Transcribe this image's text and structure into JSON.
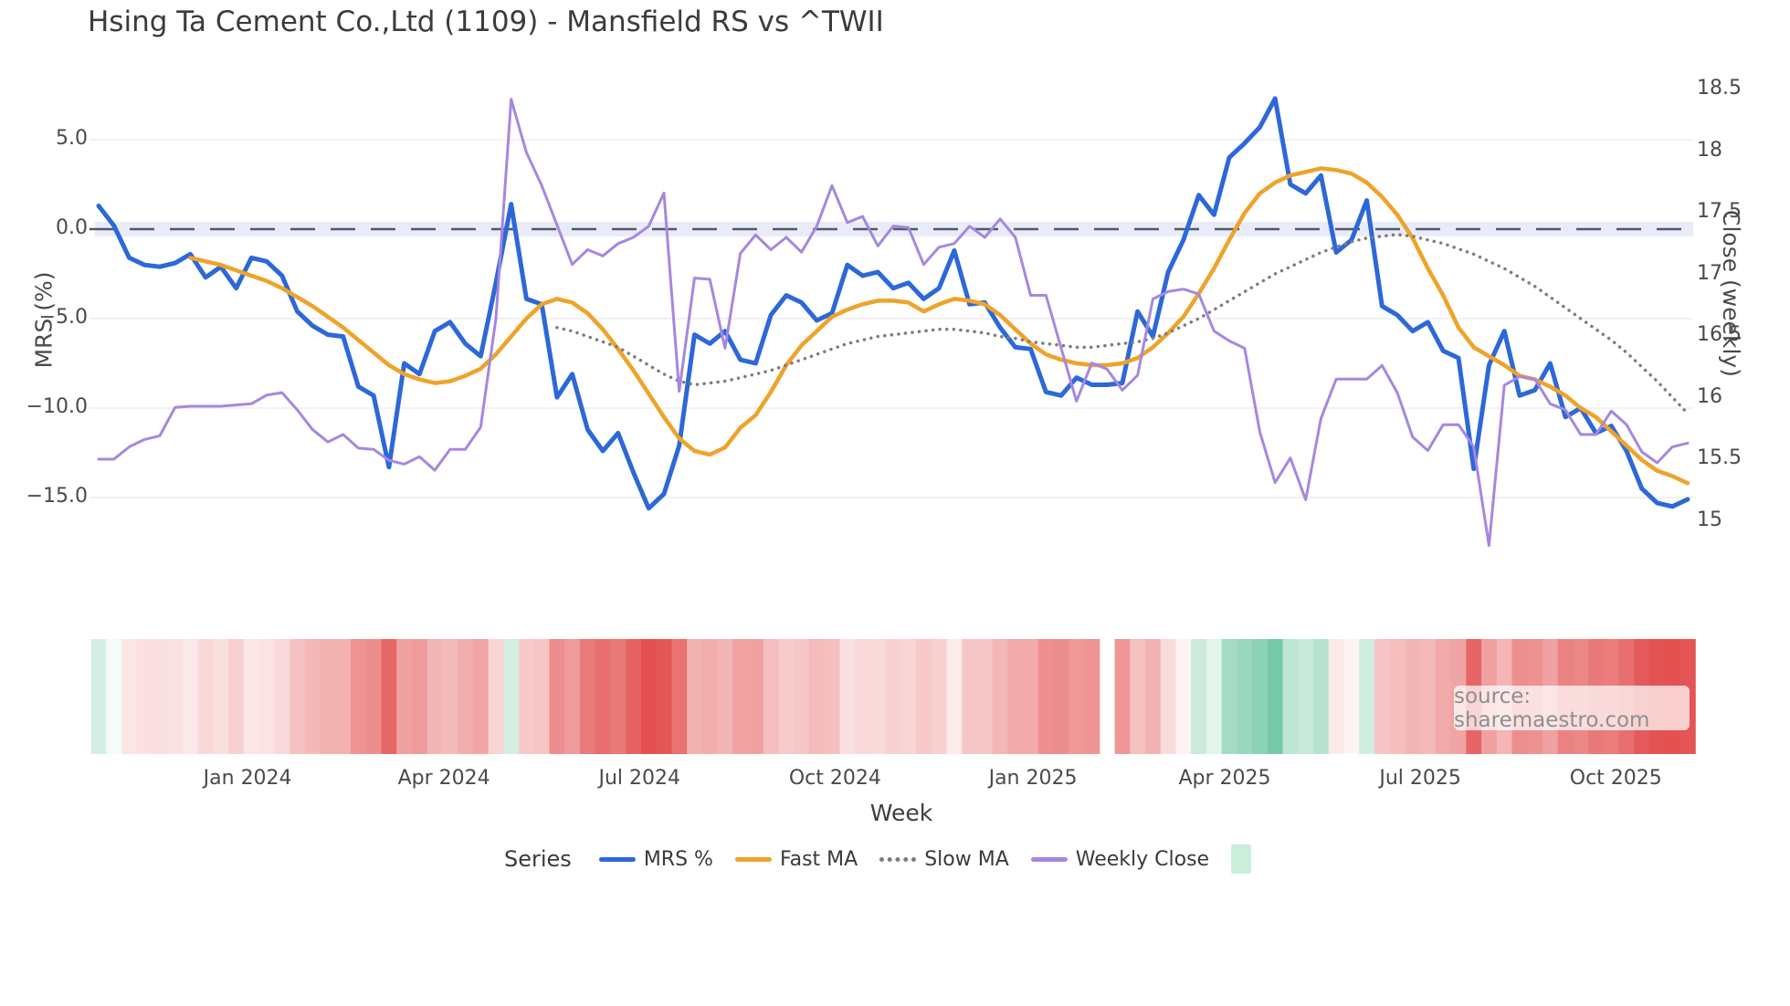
{
  "chart_data": {
    "type": "line",
    "title": "Hsing Ta Cement Co.,Ltd (1109) - Mansfield RS vs ^TWII",
    "xlabel": "Week",
    "ylabel_left": "MRS (%)",
    "ylabel_right": "Close (weekly)",
    "legend_title": "Series",
    "source_text": "source: sharemaestro.com",
    "grid": true,
    "zero_line_value": 0.0,
    "x_tick_labels": [
      "Jan 2024",
      "Apr 2024",
      "Jul 2024",
      "Oct 2024",
      "Jan 2025",
      "Apr 2025",
      "Jul 2025",
      "Oct 2025"
    ],
    "x_tick_weeks": [
      9.75,
      22.6,
      35.4,
      48.2,
      61.15,
      73.7,
      86.5,
      99.3
    ],
    "yleft_tick_labels": [
      "5.0",
      "0.0",
      "−5.0",
      "−10.0",
      "−15.0"
    ],
    "yleft_tick_values": [
      5.0,
      0.0,
      -5.0,
      -10.0,
      -15.0
    ],
    "yleft_range": [
      -17.5,
      9.8
    ],
    "yright_tick_labels": [
      "18.5",
      "18",
      "17.5",
      "17",
      "16.5",
      "16",
      "15.5",
      "15"
    ],
    "yright_tick_values": [
      18.5,
      18,
      17.5,
      17,
      16.5,
      16,
      15.5,
      15
    ],
    "yright_range": [
      14.6,
      18.8
    ],
    "weeks_count": 105,
    "colors": {
      "mrs": "#2d68d9",
      "fast_ma": "#eea32a",
      "slow_ma": "#7d7d7d",
      "weekly_close": "#a687e0",
      "heat_positive": "#12a368",
      "heat_negative": "#e34c4c",
      "heat_legend_swatch": "#c9efdc",
      "zero_band": "#e9ecf8",
      "zero_dash": "#4f5868",
      "gridline": "#eceef2"
    },
    "series": [
      {
        "name": "MRS %",
        "axis": "left",
        "style": "solid",
        "color": "#2d68d9",
        "width": 5,
        "values": [
          1.3,
          0.2,
          -1.6,
          -2.0,
          -2.1,
          -1.9,
          -1.4,
          -2.7,
          -2.1,
          -3.3,
          -1.6,
          -1.8,
          -2.6,
          -4.6,
          -5.4,
          -5.9,
          -6.0,
          -8.8,
          -9.3,
          -13.3,
          -7.5,
          -8.1,
          -5.7,
          -5.2,
          -6.4,
          -7.1,
          -3.0,
          1.4,
          -3.9,
          -4.2,
          -9.4,
          -8.1,
          -11.2,
          -12.4,
          -11.4,
          -13.6,
          -15.6,
          -14.8,
          -12.1,
          -5.9,
          -6.4,
          -5.7,
          -7.3,
          -7.5,
          -4.8,
          -3.7,
          -4.1,
          -5.1,
          -4.7,
          -2.0,
          -2.6,
          -2.4,
          -3.3,
          -3.0,
          -3.9,
          -3.3,
          -1.2,
          -4.2,
          -4.1,
          -5.5,
          -6.6,
          -6.7,
          -9.1,
          -9.3,
          -8.3,
          -8.7,
          -8.7,
          -8.6,
          -4.6,
          -6.0,
          -2.4,
          -0.6,
          1.9,
          0.8,
          4.0,
          4.8,
          5.7,
          7.3,
          2.5,
          2.0,
          3.0,
          -1.3,
          -0.6,
          1.6,
          -4.3,
          -4.8,
          -5.7,
          -5.2,
          -6.8,
          -7.2,
          -13.4,
          -7.6,
          -5.7,
          -9.3,
          -9.0,
          -7.5,
          -10.5,
          -10.0,
          -11.4,
          -11.0,
          -12.4,
          -14.5,
          -15.3,
          -15.5,
          -15.1
        ]
      },
      {
        "name": "Fast MA",
        "axis": "left",
        "style": "solid",
        "color": "#eea32a",
        "width": 4.5,
        "values": [
          null,
          null,
          null,
          null,
          null,
          null,
          -1.6,
          -1.8,
          -2.0,
          -2.3,
          -2.6,
          -2.9,
          -3.3,
          -3.8,
          -4.3,
          -4.9,
          -5.5,
          -6.2,
          -6.9,
          -7.6,
          -8.1,
          -8.4,
          -8.6,
          -8.5,
          -8.2,
          -7.8,
          -7.0,
          -6.0,
          -5.0,
          -4.2,
          -3.9,
          -4.1,
          -4.7,
          -5.6,
          -6.7,
          -7.9,
          -9.2,
          -10.5,
          -11.7,
          -12.4,
          -12.6,
          -12.2,
          -11.1,
          -10.4,
          -9.1,
          -7.6,
          -6.5,
          -5.7,
          -4.9,
          -4.5,
          -4.2,
          -4.0,
          -4.0,
          -4.1,
          -4.6,
          -4.2,
          -3.9,
          -4.0,
          -4.2,
          -4.8,
          -5.6,
          -6.4,
          -7.0,
          -7.3,
          -7.5,
          -7.6,
          -7.6,
          -7.5,
          -7.2,
          -6.6,
          -5.8,
          -4.9,
          -3.6,
          -2.2,
          -0.6,
          0.9,
          2.0,
          2.6,
          3.0,
          3.2,
          3.4,
          3.3,
          3.1,
          2.6,
          1.8,
          0.8,
          -0.5,
          -2.2,
          -3.7,
          -5.5,
          -6.6,
          -7.1,
          -7.6,
          -8.2,
          -8.4,
          -8.8,
          -9.3,
          -10.0,
          -10.5,
          -11.3,
          -12.1,
          -12.9,
          -13.5,
          -13.8,
          -14.2
        ]
      },
      {
        "name": "Slow MA",
        "axis": "left",
        "style": "dotted",
        "color": "#7d7d7d",
        "width": 3.5,
        "values": [
          null,
          null,
          null,
          null,
          null,
          null,
          null,
          null,
          null,
          null,
          null,
          null,
          null,
          null,
          null,
          null,
          null,
          null,
          null,
          null,
          null,
          null,
          null,
          null,
          null,
          null,
          null,
          null,
          null,
          null,
          -5.5,
          -5.7,
          -6.0,
          -6.3,
          -6.6,
          -7.1,
          -7.6,
          -8.1,
          -8.5,
          -8.7,
          -8.6,
          -8.5,
          -8.3,
          -8.1,
          -7.9,
          -7.6,
          -7.3,
          -7.0,
          -6.7,
          -6.4,
          -6.2,
          -6.0,
          -5.9,
          -5.8,
          -5.7,
          -5.6,
          -5.6,
          -5.7,
          -5.8,
          -6.0,
          -6.1,
          -6.3,
          -6.4,
          -6.5,
          -6.6,
          -6.6,
          -6.5,
          -6.4,
          -6.3,
          -6.1,
          -5.8,
          -5.4,
          -5.0,
          -4.5,
          -4.0,
          -3.5,
          -3.0,
          -2.5,
          -2.1,
          -1.7,
          -1.3,
          -1.0,
          -0.7,
          -0.5,
          -0.4,
          -0.3,
          -0.4,
          -0.6,
          -0.8,
          -1.1,
          -1.4,
          -1.8,
          -2.2,
          -2.7,
          -3.2,
          -3.8,
          -4.4,
          -5.0,
          -5.6,
          -6.2,
          -6.9,
          -7.7,
          -8.5,
          -9.4,
          -10.3
        ]
      },
      {
        "name": "Weekly Close",
        "axis": "right",
        "style": "solid",
        "color": "#a687e0",
        "width": 3,
        "values": [
          15.5,
          15.5,
          15.6,
          15.66,
          15.69,
          15.92,
          15.93,
          15.93,
          15.93,
          15.94,
          15.95,
          16.02,
          16.04,
          15.9,
          15.74,
          15.64,
          15.7,
          15.59,
          15.58,
          15.49,
          15.46,
          15.52,
          15.41,
          15.58,
          15.58,
          15.76,
          16.64,
          18.42,
          17.99,
          17.72,
          17.4,
          17.08,
          17.2,
          17.15,
          17.25,
          17.3,
          17.39,
          17.66,
          16.05,
          16.97,
          16.96,
          16.4,
          17.17,
          17.32,
          17.2,
          17.3,
          17.18,
          17.39,
          17.72,
          17.42,
          17.47,
          17.23,
          17.39,
          17.38,
          17.08,
          17.22,
          17.25,
          17.39,
          17.3,
          17.45,
          17.3,
          16.83,
          16.83,
          16.4,
          15.97,
          16.28,
          16.23,
          16.06,
          16.18,
          16.8,
          16.86,
          16.88,
          16.84,
          16.54,
          16.46,
          16.4,
          15.72,
          15.31,
          15.51,
          15.17,
          15.83,
          16.15,
          16.15,
          16.15,
          16.26,
          16.04,
          15.68,
          15.57,
          15.78,
          15.78,
          15.6,
          14.8,
          16.1,
          16.17,
          16.15,
          15.95,
          15.9,
          15.7,
          15.7,
          15.89,
          15.78,
          15.56,
          15.47,
          15.6,
          15.63
        ]
      }
    ],
    "heatmap": {
      "description": "weekly strip colored from MRS % value: green positive, red negative",
      "source_series": "MRS %",
      "gap_weeks": [
        66
      ],
      "max_abs_value": 16
    }
  }
}
